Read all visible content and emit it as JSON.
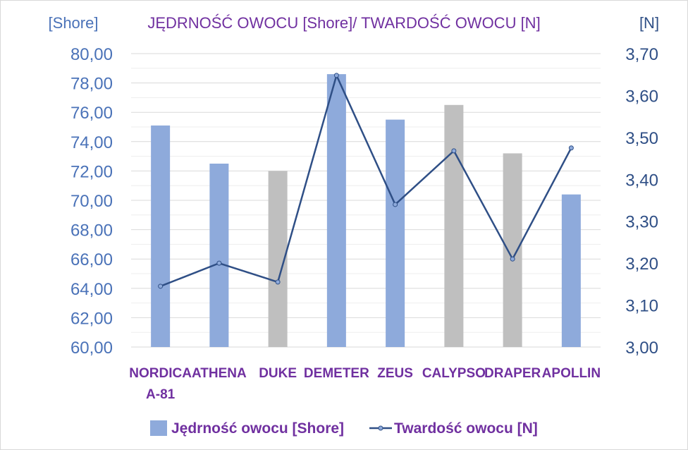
{
  "chart_data": {
    "type": "bar+line",
    "title": "JĘDRNOŚĆ OWOCU [Shore]/ TWARDOŚĆ OWOCU [N]",
    "y_left_label": "[Shore]",
    "y_right_label": "[N]",
    "categories": [
      [
        "NORDICA",
        "A-81"
      ],
      [
        "ATHENA"
      ],
      [
        "DUKE"
      ],
      [
        "DEMETER"
      ],
      [
        "ZEUS"
      ],
      [
        "CALYPSO"
      ],
      [
        "DRAPER"
      ],
      [
        "APOLLIN"
      ]
    ],
    "y_left_ticks": [
      "60,00",
      "62,00",
      "64,00",
      "66,00",
      "68,00",
      "70,00",
      "72,00",
      "74,00",
      "76,00",
      "78,00",
      "80,00"
    ],
    "y_right_ticks": [
      "3,00",
      "3,10",
      "3,20",
      "3,30",
      "3,40",
      "3,50",
      "3,60",
      "3,70"
    ],
    "ylim_left": [
      60,
      80
    ],
    "ylim_right": [
      3.0,
      3.7
    ],
    "grid": true,
    "legend_position": "bottom",
    "series": [
      {
        "name": "Jędrność owocu [Shore]",
        "kind": "bar",
        "axis": "left",
        "values": [
          75.1,
          72.5,
          72.0,
          78.6,
          75.5,
          76.5,
          73.2,
          70.4
        ],
        "colors": [
          "#8eaadb",
          "#8eaadb",
          "#bfbfbf",
          "#8eaadb",
          "#8eaadb",
          "#bfbfbf",
          "#bfbfbf",
          "#8eaadb"
        ]
      },
      {
        "name": "Twardość owocu [N]",
        "kind": "line",
        "axis": "right",
        "color": "#2f4f86",
        "values": [
          3.145,
          3.2,
          3.155,
          3.648,
          3.34,
          3.468,
          3.21,
          3.475
        ]
      }
    ]
  }
}
